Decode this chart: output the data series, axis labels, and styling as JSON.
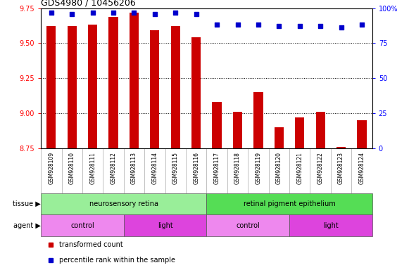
{
  "title": "GDS4980 / 10456206",
  "samples": [
    "GSM928109",
    "GSM928110",
    "GSM928111",
    "GSM928112",
    "GSM928113",
    "GSM928114",
    "GSM928115",
    "GSM928116",
    "GSM928117",
    "GSM928118",
    "GSM928119",
    "GSM928120",
    "GSM928121",
    "GSM928122",
    "GSM928123",
    "GSM928124"
  ],
  "transformed_count": [
    9.62,
    9.62,
    9.63,
    9.69,
    9.72,
    9.59,
    9.62,
    9.54,
    9.08,
    9.01,
    9.15,
    8.9,
    8.97,
    9.01,
    8.76,
    8.95
  ],
  "percentile_rank": [
    97,
    96,
    97,
    97,
    97,
    96,
    97,
    96,
    88,
    88,
    88,
    87,
    87,
    87,
    86,
    88
  ],
  "ylim_left": [
    8.75,
    9.75
  ],
  "ylim_right": [
    0,
    100
  ],
  "yticks_left": [
    8.75,
    9.0,
    9.25,
    9.5,
    9.75
  ],
  "yticks_right": [
    0,
    25,
    50,
    75,
    100
  ],
  "bar_color": "#cc0000",
  "dot_color": "#0000cc",
  "tissue_groups": [
    {
      "label": "neurosensory retina",
      "start": 0,
      "end": 7,
      "color": "#99ee99"
    },
    {
      "label": "retinal pigment epithelium",
      "start": 8,
      "end": 15,
      "color": "#55dd55"
    }
  ],
  "agent_groups": [
    {
      "label": "control",
      "start": 0,
      "end": 3,
      "color": "#ee88ee"
    },
    {
      "label": "light",
      "start": 4,
      "end": 7,
      "color": "#dd44dd"
    },
    {
      "label": "control",
      "start": 8,
      "end": 11,
      "color": "#ee88ee"
    },
    {
      "label": "light",
      "start": 12,
      "end": 15,
      "color": "#dd44dd"
    }
  ],
  "tissue_label": "tissue",
  "agent_label": "agent",
  "xticklabel_bg": "#c8c8c8",
  "legend": [
    {
      "label": "transformed count",
      "color": "#cc0000"
    },
    {
      "label": "percentile rank within the sample",
      "color": "#0000cc"
    }
  ],
  "grid_color": "black",
  "grid_linestyle": "dotted",
  "spine_color": "#aaaaaa"
}
